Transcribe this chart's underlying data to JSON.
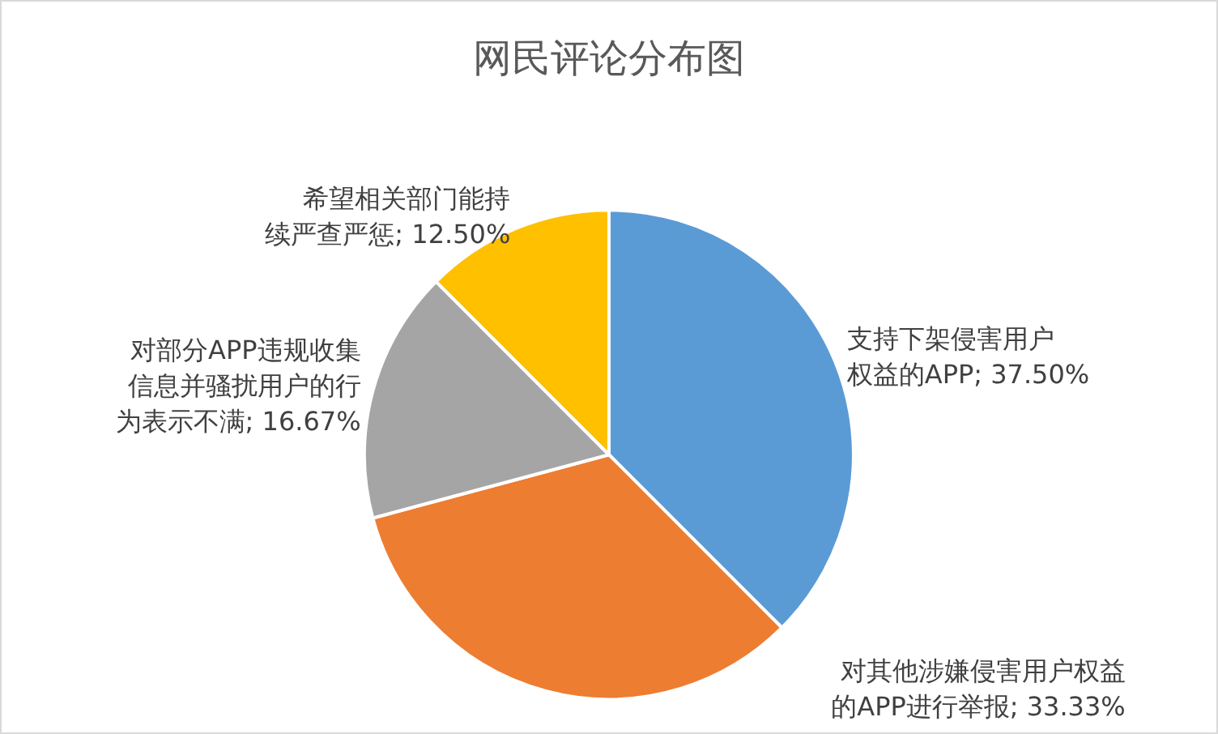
{
  "chart_data": {
    "type": "pie",
    "title": "网民评论分布图",
    "categories": [
      "支持下架侵害用户权益的APP",
      "对其他涉嫌侵害用户权益的APP进行举报",
      "对部分APP违规收集信息并骚扰用户的行为表示不满",
      "希望相关部门能持续严查严惩"
    ],
    "values": [
      37.5,
      33.33,
      16.67,
      12.5
    ],
    "value_labels": [
      "37.50%",
      "33.33%",
      "16.67%",
      "12.50%"
    ],
    "colors": [
      "#5b9bd5",
      "#ed7d31",
      "#a5a5a5",
      "#ffc000"
    ],
    "legend": false
  }
}
